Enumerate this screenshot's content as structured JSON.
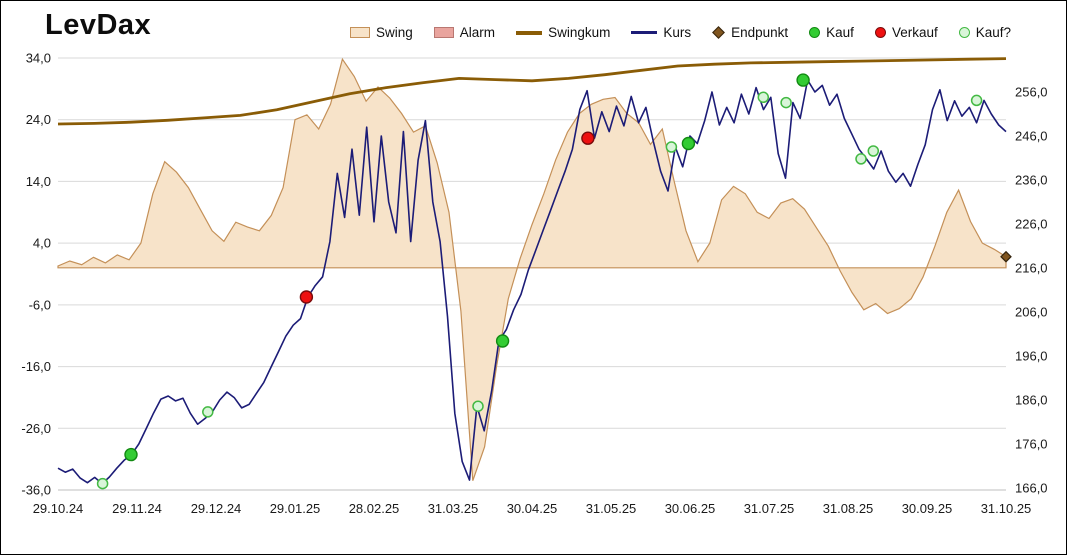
{
  "title": "LevDax",
  "legend": {
    "items": [
      {
        "id": "swing",
        "label": "Swing"
      },
      {
        "id": "alarm",
        "label": "Alarm"
      },
      {
        "id": "swingkum",
        "label": "Swingkum"
      },
      {
        "id": "kurs",
        "label": "Kurs"
      },
      {
        "id": "endpunkt",
        "label": "Endpunkt"
      },
      {
        "id": "kauf",
        "label": "Kauf"
      },
      {
        "id": "verkauf",
        "label": "Verkauf"
      },
      {
        "id": "kaufq",
        "label": "Kauf?"
      }
    ]
  },
  "colors": {
    "swing_fill": "#f7e3c9",
    "swing_stroke": "#c49058",
    "alarm_fill": "#e9a49e",
    "alarm_stroke": "#b97771",
    "swingkum": "#8a5c06",
    "kurs": "#1c1c77",
    "kauf_fill": "#33cc33",
    "kauf_stroke": "#128a12",
    "verkauf_fill": "#ee1111",
    "verkauf_stroke": "#7a0c0c",
    "kaufq_fill": "#d9f5d9",
    "kaufq_stroke": "#43b943",
    "endpunkt_fill": "#80551f",
    "endpunkt_stroke": "#33230d",
    "grid": "#d9d9d9",
    "axis_line": "#bfbfbf",
    "text": "#1a1a1a"
  },
  "chart_data": {
    "type": "line",
    "title": "LevDax",
    "x_range": [
      "29.10.24",
      "31.10.25"
    ],
    "x_tick_labels": [
      "29.10.24",
      "29.11.24",
      "29.12.24",
      "29.01.25",
      "28.02.25",
      "31.03.25",
      "30.04.25",
      "31.05.25",
      "30.06.25",
      "31.07.25",
      "31.08.25",
      "30.09.25",
      "31.10.25"
    ],
    "left_axis": {
      "min": -36,
      "max": 34,
      "tick_values": [
        34,
        24,
        14,
        4,
        -6,
        -16,
        -26,
        -36
      ],
      "tick_labels": [
        "34,0",
        "24,0",
        "14,0",
        "4,0",
        "-6,0",
        "-16,0",
        "-26,0",
        "-36,0"
      ],
      "series": [
        "Swing",
        "Swingkum"
      ]
    },
    "right_axis": {
      "min": 166,
      "max": 256,
      "tick_values": [
        256,
        246,
        236,
        226,
        216,
        206,
        196,
        186,
        176,
        166
      ],
      "tick_labels": [
        "256,0",
        "246,0",
        "236,0",
        "226,0",
        "216,0",
        "206,0",
        "196,0",
        "186,0",
        "176,0",
        "166,0"
      ],
      "series": [
        "Kurs"
      ]
    },
    "grid": "horizontal",
    "legend_position": "top",
    "series": [
      {
        "name": "Swing",
        "type": "area",
        "axis": "left",
        "values": [
          0.3,
          1.1,
          0.5,
          1.7,
          0.8,
          2.1,
          1.3,
          4.0,
          12.0,
          17.2,
          15.5,
          13.0,
          9.5,
          6.0,
          4.3,
          7.4,
          6.6,
          6.0,
          8.5,
          13.0,
          24.0,
          24.8,
          22.5,
          26.5,
          33.8,
          31.0,
          27.0,
          29.3,
          27.5,
          25.0,
          22.0,
          23.0,
          17.0,
          9.0,
          -7.0,
          -34.5,
          -29.0,
          -16.0,
          -5.0,
          1.5,
          7.0,
          12.0,
          17.5,
          22.0,
          25.0,
          26.5,
          27.3,
          27.6,
          25.0,
          23.5,
          20.0,
          22.5,
          14.0,
          6.0,
          1.0,
          4.0,
          11.0,
          13.2,
          12.0,
          9.0,
          8.0,
          10.5,
          11.2,
          9.5,
          6.5,
          3.5,
          -0.5,
          -4.0,
          -6.8,
          -5.8,
          -7.4,
          -6.6,
          -5.0,
          -1.5,
          3.5,
          9.0,
          12.6,
          7.5,
          4.0,
          3.0,
          1.8
        ]
      },
      {
        "name": "Swingkum",
        "type": "line",
        "axis": "left",
        "values": [
          23.3,
          23.4,
          23.6,
          23.9,
          24.3,
          24.7,
          25.6,
          26.9,
          28.2,
          29.2,
          30.0,
          30.7,
          30.5,
          30.3,
          30.7,
          31.3,
          32.0,
          32.7,
          33.0,
          33.2,
          33.3,
          33.4,
          33.5,
          33.6,
          33.7,
          33.8,
          33.9
        ]
      },
      {
        "name": "Kurs",
        "type": "line",
        "axis": "right",
        "values": [
          170.5,
          169.6,
          170.3,
          168.3,
          167.2,
          168.4,
          167.0,
          168.5,
          170.5,
          172.3,
          173.6,
          176.0,
          179.5,
          183.0,
          186.2,
          186.9,
          185.8,
          186.4,
          183.0,
          180.5,
          181.8,
          183.3,
          186.0,
          187.8,
          186.5,
          184.2,
          185.0,
          187.5,
          190.0,
          193.5,
          197.0,
          200.5,
          203.0,
          204.5,
          209.4,
          212.0,
          214.0,
          222.0,
          237.5,
          227.5,
          243.0,
          228.0,
          248.0,
          226.5,
          246.0,
          231.0,
          224.0,
          247.0,
          222.0,
          240.5,
          249.5,
          231.0,
          222.0,
          205.0,
          183.0,
          172.0,
          167.8,
          184.6,
          179.0,
          188.0,
          199.4,
          202.0,
          206.5,
          210.0,
          215.5,
          220.0,
          224.5,
          229.0,
          233.5,
          238.0,
          243.0,
          252.0,
          256.3,
          245.5,
          251.5,
          247.0,
          252.8,
          248.3,
          255.0,
          249.0,
          252.5,
          244.8,
          238.0,
          233.5,
          243.5,
          239.0,
          246.0,
          244.3,
          249.5,
          256.0,
          248.5,
          252.5,
          249.0,
          255.5,
          251.0,
          257.0,
          252.0,
          254.8,
          242.0,
          236.4,
          253.6,
          250.0,
          258.7,
          256.0,
          257.5,
          253.0,
          255.5,
          250.0,
          246.5,
          243.0,
          240.8,
          238.5,
          242.6,
          238.0,
          235.5,
          237.5,
          234.6,
          239.5,
          244.0,
          252.0,
          256.5,
          249.5,
          254.0,
          250.5,
          252.5,
          249.0,
          254.1,
          251.0,
          248.5,
          247.0
        ]
      }
    ],
    "markers": {
      "kauf": [
        {
          "t": 0.077,
          "v": 173.6
        },
        {
          "t": 0.469,
          "v": 199.4
        },
        {
          "t": 0.665,
          "v": 244.3
        },
        {
          "t": 0.786,
          "v": 258.7
        }
      ],
      "verkauf": [
        {
          "t": 0.262,
          "v": 209.4
        },
        {
          "t": 0.559,
          "v": 245.5
        }
      ],
      "kauf_frage": [
        {
          "t": 0.047,
          "v": 167.0
        },
        {
          "t": 0.158,
          "v": 183.3
        },
        {
          "t": 0.443,
          "v": 184.6
        },
        {
          "t": 0.647,
          "v": 243.5
        },
        {
          "t": 0.744,
          "v": 254.8
        },
        {
          "t": 0.768,
          "v": 253.6
        },
        {
          "t": 0.847,
          "v": 240.8
        },
        {
          "t": 0.86,
          "v": 242.6
        },
        {
          "t": 0.969,
          "v": 254.1
        }
      ],
      "endpunkt": [
        {
          "t": 1.0,
          "v": 1.8,
          "axis": "left"
        }
      ]
    }
  }
}
